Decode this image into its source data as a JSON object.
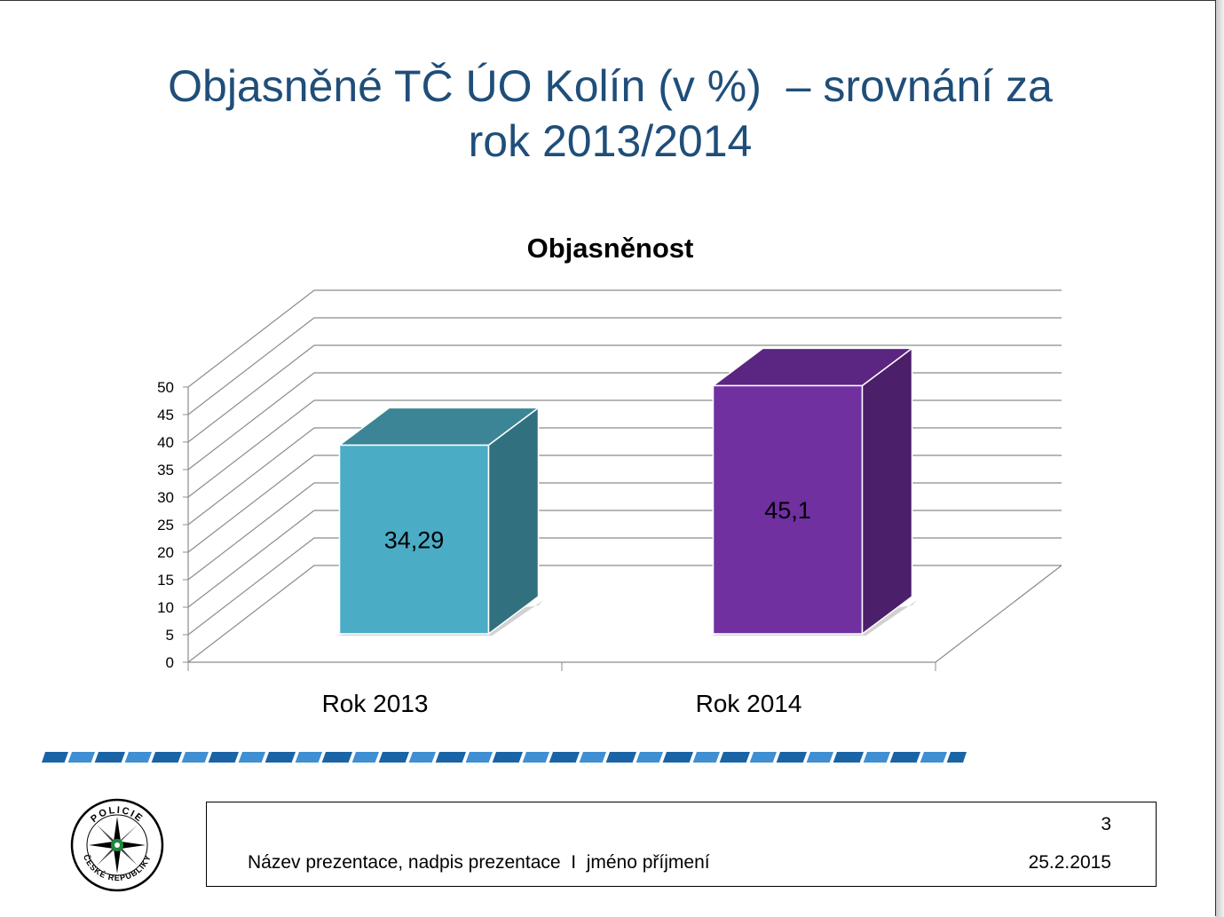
{
  "title": {
    "line1": "Objasněné TČ ÚO Kolín (v %)  – srovnání za",
    "line2": "rok 2013/2014"
  },
  "chart_data": {
    "type": "bar",
    "title": "Objasněnost",
    "categories": [
      "Rok 2013",
      "Rok 2014"
    ],
    "values": [
      34.29,
      45.1
    ],
    "value_labels": [
      "34,29",
      "45,1"
    ],
    "ylim": [
      0,
      50
    ],
    "yticks": [
      0,
      5,
      10,
      15,
      20,
      25,
      30,
      35,
      40,
      45,
      50
    ],
    "grid": true,
    "style": "3d",
    "colors": [
      {
        "front": "#4bacc6",
        "side": "#31707f",
        "top": "#3b8596"
      },
      {
        "front": "#7030a0",
        "side": "#4b1f6a",
        "top": "#5b2582"
      }
    ]
  },
  "logo": {
    "name": "police-emblem",
    "text_top": "POLICIE",
    "text_bottom": "ČESKÉ REPUBLIKY"
  },
  "footer": {
    "text": "Název prezentace, nadpis prezentace  I  jméno příjmení",
    "page_number": "3",
    "date": "25.2.2015"
  }
}
